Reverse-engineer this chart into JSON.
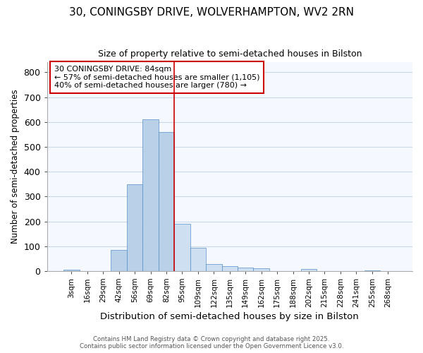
{
  "title1": "30, CONINGSBY DRIVE, WOLVERHAMPTON, WV2 2RN",
  "title2": "Size of property relative to semi-detached houses in Bilston",
  "xlabel": "Distribution of semi-detached houses by size in Bilston",
  "ylabel": "Number of semi-detached properties",
  "categories": [
    "3sqm",
    "16sqm",
    "29sqm",
    "42sqm",
    "56sqm",
    "69sqm",
    "82sqm",
    "95sqm",
    "109sqm",
    "122sqm",
    "135sqm",
    "149sqm",
    "162sqm",
    "175sqm",
    "188sqm",
    "202sqm",
    "215sqm",
    "228sqm",
    "241sqm",
    "255sqm",
    "268sqm"
  ],
  "values": [
    5,
    0,
    0,
    85,
    350,
    610,
    560,
    190,
    93,
    27,
    20,
    15,
    10,
    0,
    0,
    8,
    0,
    0,
    0,
    3,
    0
  ],
  "bar_color_smaller": "#b8d0e8",
  "bar_color_larger": "#cddff0",
  "highlight_index": 6,
  "vline_color": "#cc0000",
  "ylim": [
    0,
    840
  ],
  "yticks": [
    0,
    100,
    200,
    300,
    400,
    500,
    600,
    700,
    800
  ],
  "annotation_text_line1": "30 CONINGSBY DRIVE: 84sqm",
  "annotation_text_line2": "← 57% of semi-detached houses are smaller (1,105)",
  "annotation_text_line3": "40% of semi-detached houses are larger (780) →",
  "footer_line1": "Contains HM Land Registry data © Crown copyright and database right 2025.",
  "footer_line2": "Contains public sector information licensed under the Open Government Licence v3.0.",
  "bg_color": "#ffffff",
  "plot_bg_color": "#f5f8ff",
  "grid_color": "#c8d8e8",
  "bar_edge_color": "#5590c8"
}
